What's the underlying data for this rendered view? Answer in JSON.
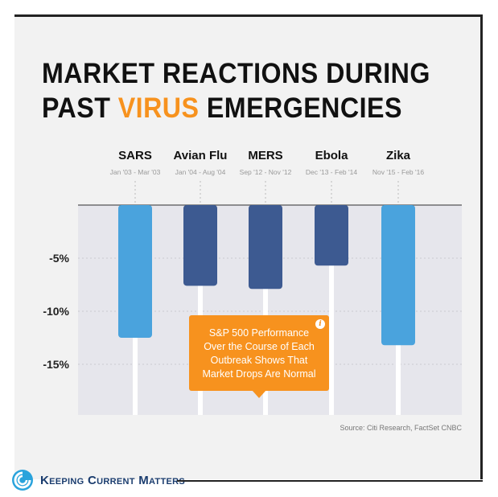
{
  "title": {
    "line1": "MARKET REACTIONS DURING",
    "line2_before": "PAST ",
    "line2_accent": "VIRUS",
    "line2_after": " EMERGENCIES"
  },
  "colors": {
    "light_bar": "#4aa3dd",
    "dark_bar": "#3d5a91",
    "accent": "#f7921e",
    "plot_bg": "#e6e6ec"
  },
  "chart_data": {
    "type": "bar",
    "categories": [
      "SARS",
      "Avian Flu",
      "MERS",
      "Ebola",
      "Zika"
    ],
    "periods": [
      "Jan '03 - Mar '03",
      "Jan '04 - Aug '04",
      "Sep '12 - Nov '12",
      "Dec '13 - Feb '14",
      "Nov '15 - Feb '16"
    ],
    "values": [
      -12.5,
      -7.6,
      -7.9,
      -5.7,
      -13.2
    ],
    "bar_colors": [
      "#4aa3dd",
      "#3d5a91",
      "#3d5a91",
      "#3d5a91",
      "#4aa3dd"
    ],
    "ytick_labels": [
      "-5%",
      "-10%",
      "-15%"
    ],
    "ytick_values": [
      -5,
      -10,
      -15
    ],
    "ylim": [
      -20,
      0
    ],
    "grid": true
  },
  "tooltip": {
    "text_lines": [
      "S&P 500 Performance",
      "Over the Course of Each",
      "Outbreak Shows That",
      "Market Drops Are Normal"
    ],
    "icon": "info-icon"
  },
  "source": "Source: Citi Research, FactSet CNBC",
  "brand": {
    "name": "Keeping Current Matters",
    "logo_icon": "kcm-swirl-icon"
  }
}
